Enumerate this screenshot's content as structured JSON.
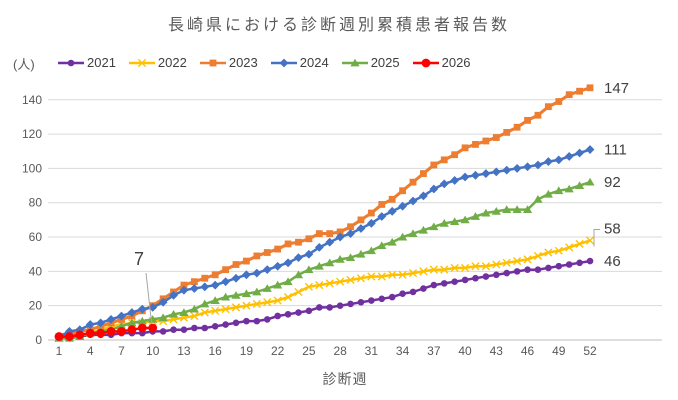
{
  "chart_data": {
    "type": "line",
    "title": "長崎県における診断週別累積患者報告数",
    "unit_label": "(人)",
    "xlabel": "診断週",
    "ylabel": "",
    "x_range": [
      1,
      52
    ],
    "xticks": [
      1,
      4,
      7,
      10,
      13,
      16,
      19,
      22,
      25,
      28,
      31,
      34,
      37,
      40,
      43,
      46,
      49,
      52
    ],
    "yticks": [
      0,
      20,
      40,
      60,
      80,
      100,
      120,
      140
    ],
    "ylim": [
      0,
      150
    ],
    "grid": "horizontal",
    "legend_position": "top",
    "annotation": {
      "text": "7",
      "series": "2026",
      "week": 10,
      "value": 7
    },
    "series": [
      {
        "name": "2021",
        "color": "#7030A0",
        "marker": "circle",
        "end_label": "46",
        "values": [
          1,
          1,
          2,
          3,
          3,
          3,
          4,
          4,
          4,
          5,
          5,
          6,
          6,
          7,
          7,
          8,
          9,
          10,
          11,
          11,
          12,
          14,
          15,
          16,
          17,
          19,
          19,
          20,
          21,
          22,
          23,
          24,
          25,
          27,
          28,
          30,
          32,
          33,
          34,
          35,
          36,
          37,
          38,
          39,
          40,
          41,
          41,
          42,
          43,
          44,
          45,
          46
        ]
      },
      {
        "name": "2022",
        "color": "#FFC000",
        "marker": "x",
        "end_label": "58",
        "values": [
          1,
          2,
          3,
          4,
          6,
          8,
          9,
          10,
          10,
          11,
          11,
          12,
          13,
          14,
          16,
          17,
          18,
          19,
          20,
          21,
          22,
          23,
          25,
          28,
          31,
          32,
          33,
          34,
          35,
          36,
          37,
          37,
          38,
          38,
          39,
          40,
          41,
          41,
          42,
          42,
          43,
          43,
          44,
          45,
          46,
          47,
          49,
          51,
          52,
          54,
          56,
          58
        ]
      },
      {
        "name": "2023",
        "color": "#ED7D31",
        "marker": "square",
        "end_label": "147",
        "values": [
          2,
          3,
          5,
          6,
          8,
          10,
          12,
          14,
          17,
          20,
          24,
          28,
          32,
          34,
          36,
          38,
          41,
          44,
          46,
          49,
          51,
          53,
          56,
          57,
          59,
          62,
          62,
          63,
          66,
          70,
          74,
          79,
          82,
          87,
          92,
          97,
          102,
          105,
          108,
          112,
          114,
          116,
          118,
          121,
          124,
          128,
          131,
          136,
          139,
          143,
          145,
          147
        ]
      },
      {
        "name": "2024",
        "color": "#4472C4",
        "marker": "diamond",
        "end_label": "111",
        "values": [
          2,
          5,
          6,
          9,
          10,
          12,
          14,
          16,
          18,
          19,
          22,
          26,
          29,
          30,
          31,
          32,
          34,
          36,
          38,
          39,
          41,
          43,
          45,
          48,
          50,
          54,
          57,
          60,
          62,
          65,
          68,
          72,
          75,
          78,
          81,
          84,
          88,
          91,
          93,
          95,
          96,
          97,
          98,
          99,
          100,
          101,
          102,
          104,
          105,
          107,
          109,
          111
        ]
      },
      {
        "name": "2025",
        "color": "#70AD47",
        "marker": "triangle",
        "end_label": "92",
        "values": [
          1,
          1,
          2,
          4,
          5,
          6,
          8,
          10,
          11,
          12,
          13,
          15,
          16,
          18,
          21,
          23,
          25,
          26,
          27,
          28,
          30,
          32,
          34,
          38,
          41,
          43,
          45,
          47,
          48,
          50,
          52,
          55,
          57,
          60,
          62,
          64,
          66,
          68,
          69,
          70,
          72,
          74,
          75,
          76,
          76,
          76,
          82,
          85,
          87,
          88,
          90,
          92
        ]
      },
      {
        "name": "2026",
        "color": "#FF0000",
        "marker": "big-circle",
        "end_label": "",
        "values": [
          2,
          2,
          3,
          4,
          4,
          5,
          5,
          6,
          7,
          7
        ]
      }
    ],
    "colors": {
      "grid": "#D9D9D9",
      "axis": "#BFBFBF",
      "tick_text": "#595959",
      "label_text": "#404040",
      "leader_line": "#A6A6A6"
    }
  }
}
